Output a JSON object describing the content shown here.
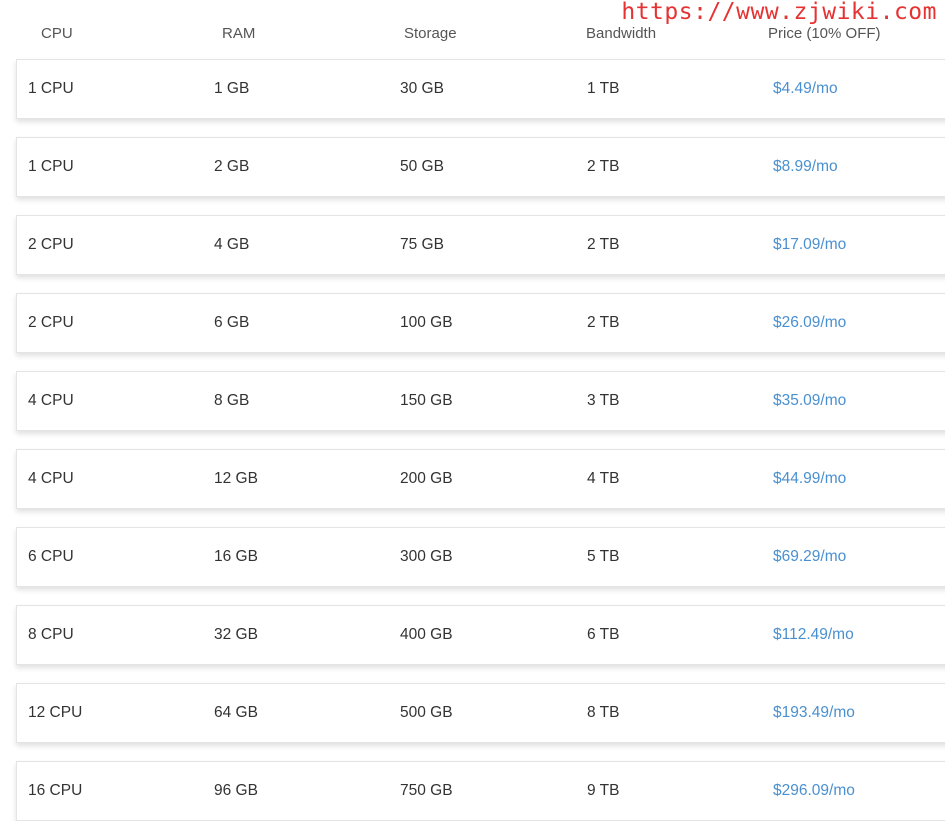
{
  "headers": [
    "CPU",
    "RAM",
    "Storage",
    "Bandwidth",
    "Price (10% OFF)"
  ],
  "rows": [
    [
      "1 CPU",
      "1 GB",
      "30 GB",
      "1 TB",
      "$4.49/mo"
    ],
    [
      "1 CPU",
      "2 GB",
      "50 GB",
      "2 TB",
      "$8.99/mo"
    ],
    [
      "2 CPU",
      "4 GB",
      "75 GB",
      "2 TB",
      "$17.09/mo"
    ],
    [
      "2 CPU",
      "6 GB",
      "100 GB",
      "2 TB",
      "$26.09/mo"
    ],
    [
      "4 CPU",
      "8 GB",
      "150 GB",
      "3 TB",
      "$35.09/mo"
    ],
    [
      "4 CPU",
      "12 GB",
      "200 GB",
      "4 TB",
      "$44.99/mo"
    ],
    [
      "6 CPU",
      "16 GB",
      "300 GB",
      "5 TB",
      "$69.29/mo"
    ],
    [
      "8 CPU",
      "32 GB",
      "400 GB",
      "6 TB",
      "$112.49/mo"
    ],
    [
      "12 CPU",
      "64 GB",
      "500 GB",
      "8 TB",
      "$193.49/mo"
    ],
    [
      "16 CPU",
      "96 GB",
      "750 GB",
      "9 TB",
      "$296.09/mo"
    ]
  ],
  "colors": {
    "price": "#4a90d0",
    "watermark": "#e53333"
  },
  "watermark": "https://www.zjwiki.com"
}
